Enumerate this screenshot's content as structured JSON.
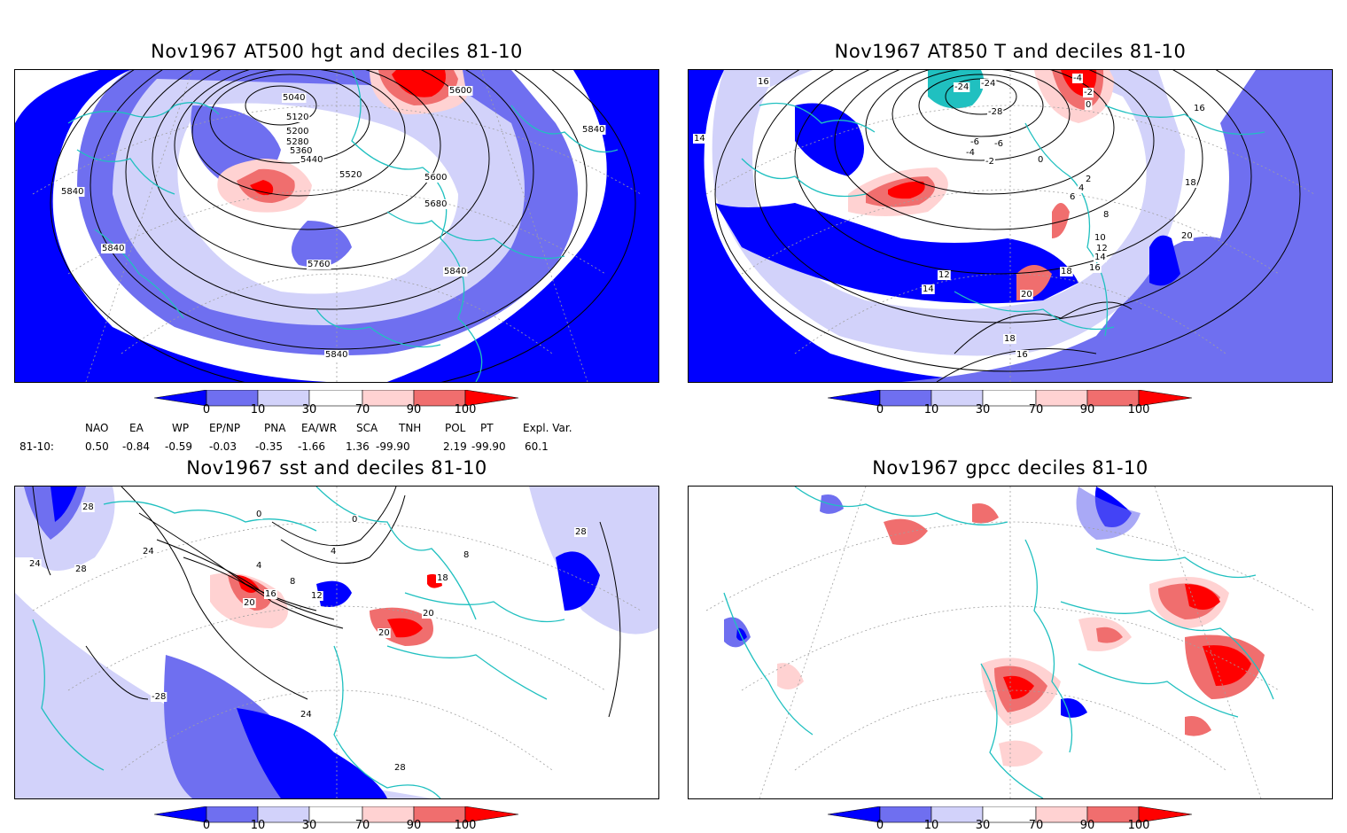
{
  "panels": [
    {
      "id": "p1",
      "title": "Nov1967 AT500 hgt and deciles 81-10",
      "contour_labels": [
        "5040",
        "5120",
        "5200",
        "5280",
        "5360",
        "5440",
        "5520",
        "5600",
        "5680",
        "5760",
        "5840",
        "5840",
        "5840",
        "5840",
        "5840",
        "5600"
      ]
    },
    {
      "id": "p2",
      "title": "Nov1967 AT850 T and deciles 81-10",
      "contour_labels": [
        "-24",
        "-24",
        "-28",
        "-6",
        "-6",
        "-4",
        "-2",
        "0",
        "2",
        "4",
        "6",
        "8",
        "10",
        "12",
        "14",
        "16",
        "18",
        "20",
        "20",
        "18",
        "16",
        "14",
        "12",
        "16",
        "18",
        "16",
        "14",
        "-4",
        "-2",
        "0"
      ]
    },
    {
      "id": "p3",
      "title": "Nov1967 sst and deciles 81-10",
      "contour_labels": [
        "28",
        "24",
        "24",
        "28",
        "0",
        "0",
        "4",
        "4",
        "8",
        "12",
        "16",
        "20",
        "20",
        "20",
        "18",
        "28",
        "24",
        "28",
        "-28",
        "8"
      ]
    },
    {
      "id": "p4",
      "title": "Nov1967 gpcc deciles 81-10",
      "contour_labels": []
    }
  ],
  "colorbar": {
    "ticks": [
      "0",
      "10",
      "30",
      "70",
      "90",
      "100"
    ],
    "colors": [
      "#0000ff",
      "#6f6ff0",
      "#d2d2fa",
      "#ffffff",
      "#ffd2d2",
      "#f06e6e",
      "#ff0000"
    ]
  },
  "indices": {
    "headers": [
      "NAO",
      "EA",
      "WP",
      "EP/NP",
      "PNA",
      "EA/WR",
      "SCA",
      "TNH",
      "POL",
      "PT",
      "Expl. Var."
    ],
    "row_label": "81-10:",
    "values": [
      "0.50",
      "-0.84",
      "-0.59",
      "-0.03",
      "-0.35",
      "-1.66",
      "1.36",
      "-99.90",
      "2.19",
      "-99.90",
      "60.1"
    ]
  },
  "map_colors": {
    "coast": "#20c0c0",
    "contour": "#000000",
    "grid": "#a0a0a0"
  }
}
